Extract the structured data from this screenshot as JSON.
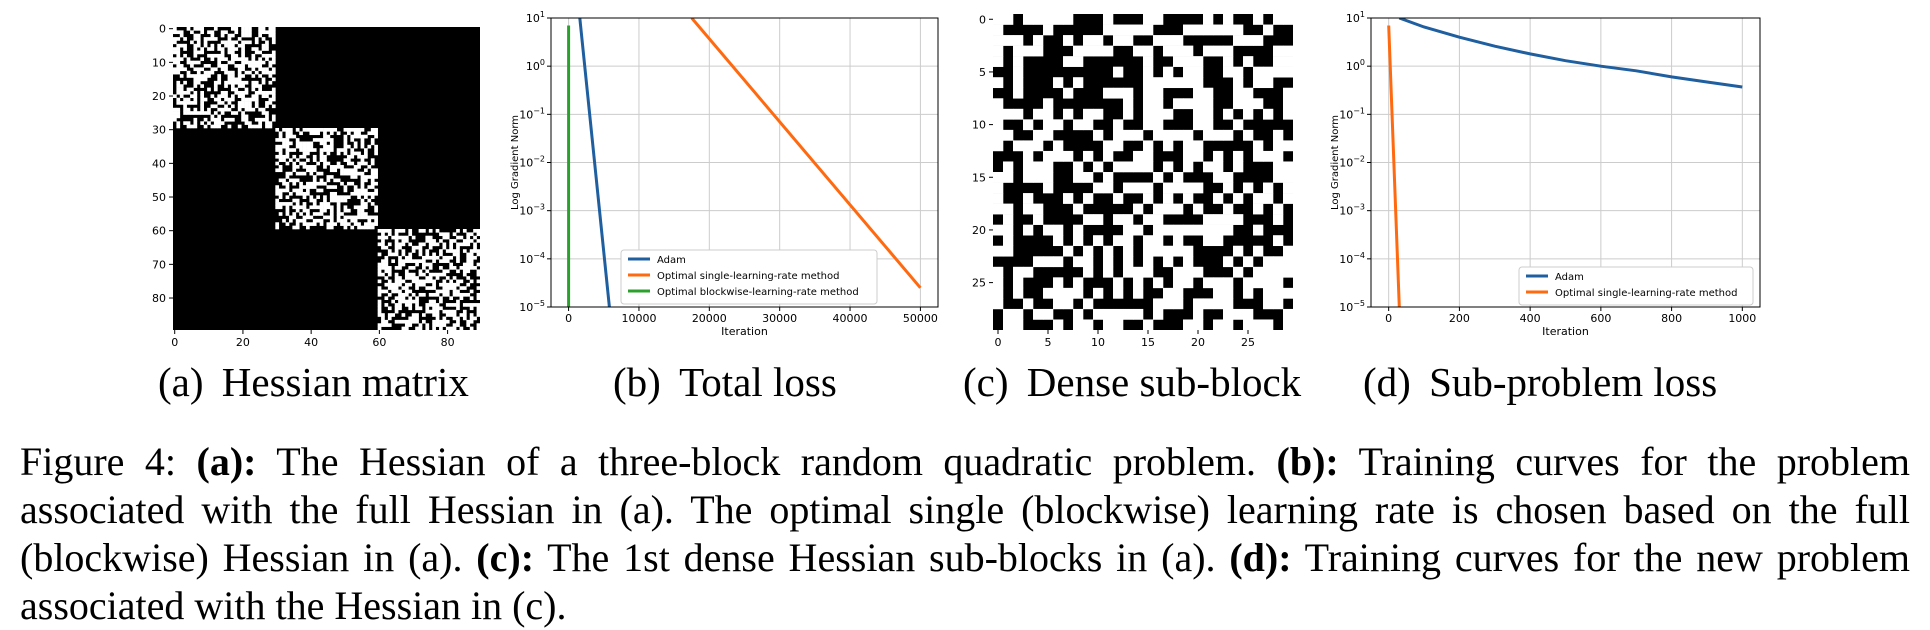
{
  "panels": {
    "a": {
      "caption_tag": "(a)",
      "caption_text": "Hessian matrix",
      "x_ticks": [
        "0",
        "20",
        "40",
        "60",
        "80"
      ],
      "y_ticks": [
        "0",
        "10",
        "20",
        "30",
        "40",
        "50",
        "60",
        "70",
        "80"
      ],
      "matrix_size": 90,
      "dense_blocks": [
        [
          0,
          30
        ],
        [
          30,
          60
        ],
        [
          60,
          90
        ]
      ]
    },
    "b": {
      "caption_tag": "(b)",
      "caption_text": "Total loss",
      "ylabel": "Log Gradient Norm",
      "xlabel": "Iteration",
      "x_ticks": [
        "0",
        "10000",
        "20000",
        "30000",
        "40000",
        "50000"
      ],
      "y_ticks": [
        "10^1",
        "10^0",
        "10^-1",
        "10^-2",
        "10^-3",
        "10^-4",
        "10^-5"
      ],
      "legend": [
        "Adam",
        "Optimal single-learning-rate method",
        "Optimal blockwise-learning-rate method"
      ]
    },
    "c": {
      "caption_tag": "(c)",
      "caption_text": "Dense sub-block",
      "x_ticks": [
        "0",
        "5",
        "10",
        "15",
        "20",
        "25"
      ],
      "y_ticks": [
        "0",
        "5",
        "10",
        "15",
        "20",
        "25"
      ],
      "matrix_size": 30
    },
    "d": {
      "caption_tag": "(d)",
      "caption_text": "Sub-problem loss",
      "ylabel": "Log Gradient Norm",
      "xlabel": "Iteration",
      "x_ticks": [
        "0",
        "200",
        "400",
        "600",
        "800",
        "1000"
      ],
      "y_ticks": [
        "10^1",
        "10^0",
        "10^-1",
        "10^-2",
        "10^-3",
        "10^-4",
        "10^-5"
      ],
      "legend": [
        "Adam",
        "Optimal single-learning-rate method"
      ]
    }
  },
  "colors": {
    "adam": "#1f5fa0",
    "single": "#ff6a10",
    "blockwise": "#2ca02c",
    "grid": "#cccccc"
  },
  "chart_data": [
    {
      "type": "line",
      "title": "",
      "xlabel": "Iteration",
      "ylabel": "Log Gradient Norm",
      "yscale": "log",
      "xlim": [
        -2500,
        52500
      ],
      "ylim": [
        1e-05,
        10
      ],
      "grid": true,
      "legend_position": "lower-left",
      "series": [
        {
          "name": "Adam",
          "x": [
            1600,
            5800
          ],
          "y": [
            10,
            1e-05
          ]
        },
        {
          "name": "Optimal single-learning-rate method",
          "x": [
            17500,
            50000
          ],
          "y": [
            10,
            2.5e-05
          ]
        },
        {
          "name": "Optimal blockwise-learning-rate method",
          "x": [
            0,
            0
          ],
          "y": [
            7,
            1e-05
          ]
        }
      ]
    },
    {
      "type": "line",
      "title": "",
      "xlabel": "Iteration",
      "ylabel": "Log Gradient Norm",
      "yscale": "log",
      "xlim": [
        -50,
        1050
      ],
      "ylim": [
        1e-05,
        10
      ],
      "grid": true,
      "legend_position": "lower-right",
      "series": [
        {
          "name": "Adam",
          "x": [
            30,
            100,
            200,
            300,
            400,
            500,
            600,
            700,
            800,
            900,
            1000
          ],
          "y": [
            10,
            6.5,
            4.0,
            2.6,
            1.8,
            1.3,
            1.0,
            0.8,
            0.6,
            0.47,
            0.37
          ]
        },
        {
          "name": "Optimal single-learning-rate method",
          "x": [
            0,
            30
          ],
          "y": [
            7,
            1e-05
          ]
        }
      ]
    }
  ],
  "figure_caption": {
    "runs": [
      {
        "text": "Figure 4: ",
        "bold": false
      },
      {
        "text": "(a):",
        "bold": true
      },
      {
        "text": " The Hessian of a three-block random quadratic problem. ",
        "bold": false
      },
      {
        "text": "(b):",
        "bold": true
      },
      {
        "text": " Training curves for the problem associated with the full Hessian in (a). The optimal single (blockwise) learning rate is chosen based on the full (blockwise) Hessian in (a). ",
        "bold": false
      },
      {
        "text": "(c):",
        "bold": true
      },
      {
        "text": " The 1st dense Hessian sub-blocks in (a). ",
        "bold": false
      },
      {
        "text": "(d):",
        "bold": true
      },
      {
        "text": " Training curves for the new problem associated with the Hessian in (c).",
        "bold": false
      }
    ]
  }
}
